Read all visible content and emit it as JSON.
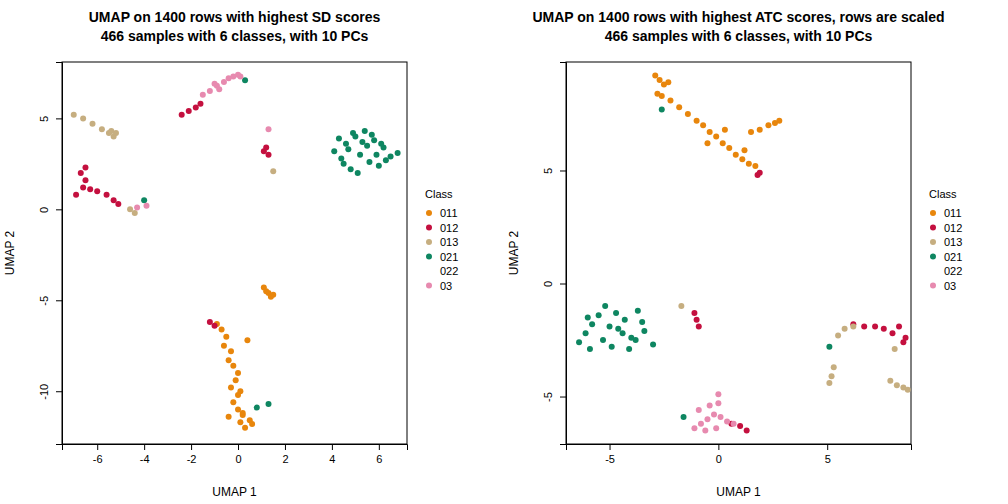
{
  "chart_data": [
    {
      "type": "scatter",
      "title": "UMAP on 1400 rows with highest SD scores",
      "subtitle": "466 samples with 6 classes, with 10 PCs",
      "x_label": "UMAP 1",
      "y_label": "UMAP 2",
      "legend_title": "Class",
      "legend": "right",
      "marker": "circle",
      "xlim": [
        -7.5,
        7.2
      ],
      "ylim": [
        -12.9,
        8.1
      ],
      "xticks": [
        -6,
        -4,
        -2,
        0,
        2,
        4,
        6
      ],
      "yticks": [
        -10,
        -5,
        0,
        5
      ],
      "series": [
        {
          "name": "011",
          "color": "#E8860C",
          "x": [
            -0.9,
            -0.7,
            -0.5,
            -0.6,
            -0.3,
            -0.4,
            -0.2,
            0.0,
            -0.1,
            -0.3,
            0.1,
            -0.2,
            0.0,
            0.2,
            0.1,
            -0.4,
            0.3,
            0.5,
            0.2,
            0.0,
            0.6,
            0.4,
            1.1,
            1.3,
            1.5,
            1.2,
            1.4
          ],
          "y": [
            -6.3,
            -6.6,
            -7.0,
            -7.5,
            -7.8,
            -8.3,
            -8.6,
            -9.0,
            -9.4,
            -9.8,
            -10.0,
            -10.6,
            -11.0,
            -11.3,
            -11.7,
            -11.4,
            -12.0,
            -11.6,
            -11.2,
            -10.2,
            -11.8,
            -7.2,
            -4.3,
            -4.6,
            -4.7,
            -4.5,
            -4.8
          ]
        },
        {
          "name": "012",
          "color": "#C4103F",
          "x": [
            -2.4,
            -2.1,
            -1.8,
            -1.6,
            -6.9,
            -6.6,
            -6.5,
            -6.7,
            -6.3,
            -6.5,
            -6.0,
            -5.6,
            -5.3,
            -5.1,
            1.1,
            1.3,
            1.2,
            -1.2,
            -1.0
          ],
          "y": [
            5.2,
            5.4,
            5.6,
            5.8,
            0.8,
            1.2,
            1.6,
            2.0,
            1.1,
            2.3,
            1.0,
            0.8,
            0.5,
            0.3,
            3.2,
            3.0,
            3.4,
            -6.2,
            -6.4
          ]
        },
        {
          "name": "013",
          "color": "#C6AE80",
          "x": [
            -7.0,
            -6.6,
            -6.2,
            -5.8,
            -5.5,
            -5.3,
            -5.2,
            -5.4,
            -4.6,
            -4.4,
            1.5
          ],
          "y": [
            5.2,
            5.0,
            4.7,
            4.4,
            4.2,
            4.0,
            4.2,
            4.3,
            0.0,
            -0.2,
            2.1
          ]
        },
        {
          "name": "021",
          "color": "#0E8661",
          "x": [
            4.1,
            4.4,
            4.6,
            4.8,
            5.0,
            5.2,
            5.4,
            5.6,
            5.8,
            6.0,
            6.2,
            6.5,
            6.8,
            4.3,
            4.7,
            5.1,
            5.5,
            5.9,
            6.3,
            4.5,
            4.9,
            5.3,
            5.7,
            6.1,
            0.3,
            -4.0,
            0.8,
            1.3
          ],
          "y": [
            3.2,
            2.8,
            3.6,
            2.2,
            4.0,
            3.0,
            4.3,
            2.6,
            3.8,
            2.4,
            3.4,
            2.9,
            3.1,
            3.9,
            3.3,
            2.0,
            3.5,
            3.0,
            2.7,
            2.5,
            4.2,
            3.7,
            4.1,
            3.6,
            7.1,
            0.5,
            -10.9,
            -10.7
          ]
        },
        {
          "name": "022",
          "color": "#FFFFFF",
          "x": [],
          "y": []
        },
        {
          "name": "03",
          "color": "#E78AAF",
          "x": [
            -1.5,
            -1.2,
            -0.9,
            -0.6,
            -0.4,
            -0.2,
            0.0,
            0.1,
            -0.8,
            -1.0,
            1.3,
            -4.3,
            -3.9
          ],
          "y": [
            6.3,
            6.5,
            6.8,
            7.0,
            7.2,
            7.3,
            7.4,
            7.3,
            6.6,
            6.9,
            4.4,
            0.1,
            0.2
          ]
        }
      ]
    },
    {
      "type": "scatter",
      "title": "UMAP on 1400 rows with highest ATC scores, rows are scaled",
      "subtitle": "466 samples with 6 classes, with 10 PCs",
      "x_label": "UMAP 1",
      "y_label": "UMAP 2",
      "legend_title": "Class",
      "legend": "right",
      "marker": "circle",
      "xlim": [
        -7.0,
        8.85
      ],
      "ylim": [
        -7.1,
        9.8
      ],
      "xticks": [
        -5,
        0,
        5
      ],
      "yticks": [
        -5,
        0,
        5
      ],
      "series": [
        {
          "name": "011",
          "color": "#E8860C",
          "x": [
            -2.9,
            -2.7,
            -2.5,
            -2.3,
            -2.8,
            -2.6,
            -2.2,
            -1.8,
            -1.4,
            -1.0,
            -0.7,
            -0.4,
            -0.1,
            0.2,
            0.5,
            0.8,
            1.1,
            1.4,
            1.7,
            -0.5,
            0.3,
            1.5,
            1.9,
            2.3,
            2.6,
            2.8,
            1.2
          ],
          "y": [
            9.2,
            9.0,
            8.8,
            8.9,
            8.4,
            8.3,
            8.1,
            7.8,
            7.5,
            7.2,
            7.0,
            6.7,
            6.5,
            6.2,
            6.0,
            5.7,
            5.5,
            5.3,
            5.2,
            6.2,
            6.8,
            6.7,
            6.8,
            7.0,
            7.1,
            7.2,
            5.9
          ]
        },
        {
          "name": "012",
          "color": "#C4103F",
          "x": [
            1.8,
            1.9,
            -1.1,
            -1.0,
            -0.9,
            6.2,
            6.7,
            7.2,
            7.6,
            8.0,
            8.3,
            8.6,
            8.5,
            0.6,
            1.0,
            1.3
          ],
          "y": [
            4.8,
            4.9,
            -1.3,
            -1.6,
            -1.9,
            -1.8,
            -1.9,
            -1.9,
            -2.0,
            -2.2,
            -1.9,
            -2.4,
            -2.6,
            -6.2,
            -6.3,
            -6.5
          ]
        },
        {
          "name": "013",
          "color": "#C6AE80",
          "x": [
            6.2,
            5.8,
            5.5,
            5.3,
            5.2,
            5.1,
            7.9,
            8.2,
            8.5,
            8.7,
            8.1,
            -1.7
          ],
          "y": [
            -1.9,
            -2.0,
            -2.3,
            -3.7,
            -4.1,
            -4.4,
            -4.3,
            -4.5,
            -4.6,
            -4.7,
            -2.9,
            -1.0
          ]
        },
        {
          "name": "021",
          "color": "#0E8661",
          "x": [
            -6.4,
            -6.1,
            -5.8,
            -5.5,
            -5.2,
            -4.9,
            -4.6,
            -4.3,
            -4.0,
            -3.7,
            -3.4,
            -3.0,
            -5.9,
            -5.3,
            -4.7,
            -4.1,
            -3.5,
            -6.0,
            -5.0,
            -4.4,
            -3.8,
            -2.6,
            -1.6,
            5.1
          ],
          "y": [
            -2.6,
            -2.2,
            -1.8,
            -1.4,
            -1.0,
            -2.8,
            -2.0,
            -1.6,
            -2.4,
            -1.2,
            -2.1,
            -2.7,
            -2.9,
            -2.5,
            -1.3,
            -2.9,
            -1.7,
            -1.5,
            -1.9,
            -2.2,
            -2.5,
            7.7,
            -5.9,
            -2.8
          ]
        },
        {
          "name": "022",
          "color": "#FFFFFF",
          "x": [],
          "y": []
        },
        {
          "name": "03",
          "color": "#E78AAF",
          "x": [
            -1.1,
            -0.8,
            -0.5,
            -0.2,
            0.1,
            0.4,
            0.7,
            -0.9,
            -0.4,
            0.0,
            -0.6,
            -0.1,
            0.0
          ],
          "y": [
            -6.4,
            -6.2,
            -6.0,
            -5.8,
            -5.9,
            -6.1,
            -6.2,
            -5.6,
            -5.4,
            -5.3,
            -6.5,
            -6.4,
            -4.9
          ]
        }
      ]
    }
  ]
}
